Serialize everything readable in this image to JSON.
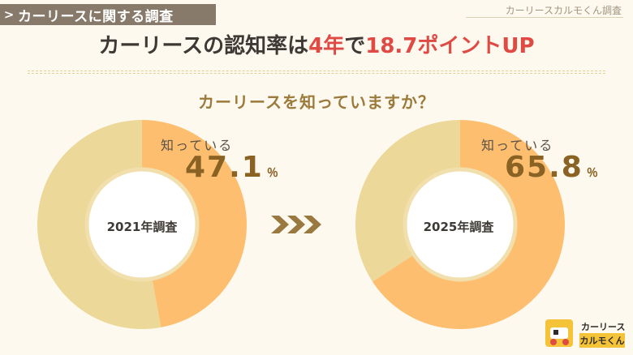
{
  "header": {
    "tag": "カーリースに関する調査",
    "source": "カーリースカルモくん調査"
  },
  "headline": {
    "part1": "カーリースの認知率は",
    "highlight1": "4年",
    "part2": "で",
    "highlight2": "18.7ポイントUP"
  },
  "question": "カーリースを知っていますか？",
  "colors": {
    "known": "#fdbf6f",
    "unknown": "#ecd899",
    "highlight": "#e04a44",
    "arrow": "#9a7941"
  },
  "chart_data": [
    {
      "type": "pie",
      "center_label": "2021年調査",
      "slices": [
        {
          "label": "知っている",
          "value": 47.1
        },
        {
          "label": "",
          "value": 52.9
        }
      ],
      "value_text": "47.1",
      "unit": "％"
    },
    {
      "type": "pie",
      "center_label": "2025年調査",
      "slices": [
        {
          "label": "知っている",
          "value": 65.8
        },
        {
          "label": "",
          "value": 34.2
        }
      ],
      "value_text": "65.8",
      "unit": "％"
    }
  ],
  "logo": {
    "top": "カーリース",
    "bottom": "カルモくん"
  }
}
